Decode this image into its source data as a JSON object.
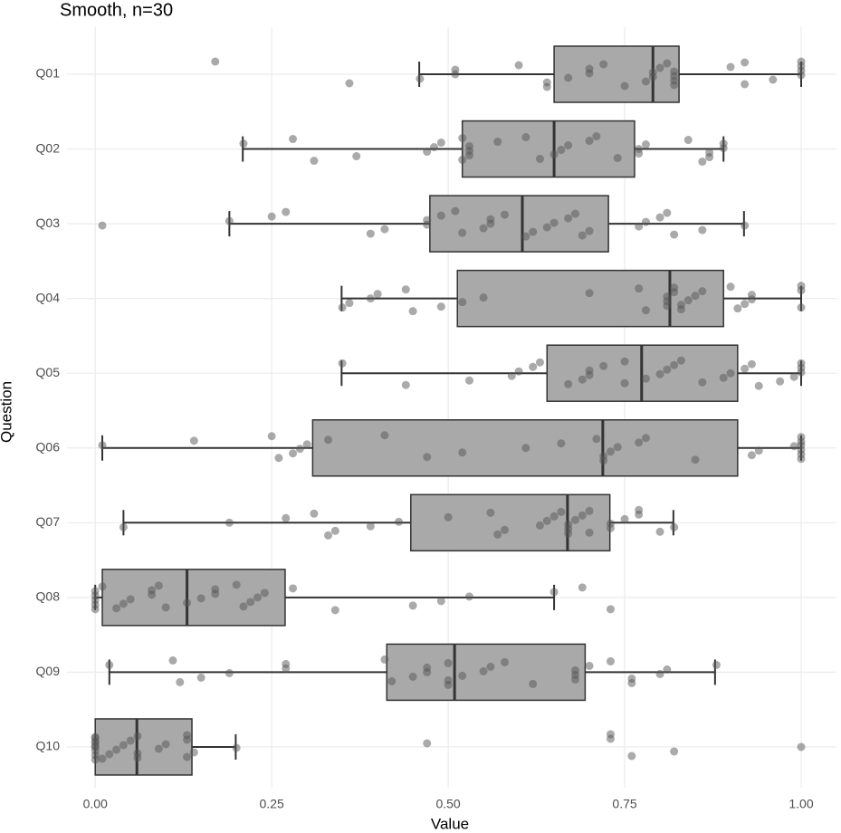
{
  "chart_data": {
    "type": "boxplot",
    "title": "Smooth, n=30",
    "x_label": "Value",
    "y_label": "Question",
    "categories": [
      "Q01",
      "Q02",
      "Q03",
      "Q04",
      "Q05",
      "Q06",
      "Q07",
      "Q08",
      "Q09",
      "Q10"
    ],
    "whisker_low": [
      0.459,
      0.209,
      0.19,
      0.349,
      0.349,
      0.01,
      0.04,
      0.0,
      0.02,
      0.0
    ],
    "q1": [
      0.65,
      0.52,
      0.474,
      0.513,
      0.64,
      0.308,
      0.447,
      0.01,
      0.413,
      0.0
    ],
    "median": [
      0.79,
      0.65,
      0.605,
      0.814,
      0.774,
      0.719,
      0.669,
      0.13,
      0.509,
      0.059
    ],
    "q3": [
      0.827,
      0.764,
      0.727,
      0.89,
      0.91,
      0.91,
      0.729,
      0.269,
      0.694,
      0.137
    ],
    "whisker_high": [
      1.0,
      0.89,
      0.919,
      1.0,
      1.0,
      1.0,
      0.819,
      0.65,
      0.878,
      0.199
    ],
    "points": [
      [
        0.17,
        0.36,
        0.46,
        0.51,
        0.51,
        0.6,
        0.64,
        0.64,
        0.67,
        0.7,
        0.7,
        0.72,
        0.75,
        0.78,
        0.79,
        0.79,
        0.8,
        0.81,
        0.82,
        0.82,
        0.82,
        0.82,
        0.9,
        0.92,
        0.92,
        0.96,
        1.0,
        1.0,
        1.0,
        1.0
      ],
      [
        0.21,
        0.28,
        0.31,
        0.37,
        0.47,
        0.48,
        0.49,
        0.52,
        0.52,
        0.53,
        0.53,
        0.53,
        0.57,
        0.61,
        0.63,
        0.65,
        0.66,
        0.67,
        0.7,
        0.71,
        0.74,
        0.77,
        0.77,
        0.78,
        0.84,
        0.86,
        0.87,
        0.87,
        0.89,
        0.89
      ],
      [
        0.01,
        0.19,
        0.25,
        0.27,
        0.39,
        0.41,
        0.47,
        0.47,
        0.49,
        0.51,
        0.52,
        0.55,
        0.56,
        0.56,
        0.58,
        0.61,
        0.62,
        0.64,
        0.65,
        0.67,
        0.68,
        0.69,
        0.7,
        0.77,
        0.78,
        0.8,
        0.81,
        0.82,
        0.86,
        0.92
      ],
      [
        0.35,
        0.36,
        0.39,
        0.4,
        0.44,
        0.45,
        0.49,
        0.52,
        0.55,
        0.7,
        0.77,
        0.78,
        0.81,
        0.81,
        0.81,
        0.82,
        0.82,
        0.83,
        0.83,
        0.84,
        0.85,
        0.86,
        0.9,
        0.91,
        0.92,
        0.93,
        0.93,
        1.0,
        1.0,
        1.0
      ],
      [
        0.35,
        0.44,
        0.53,
        0.59,
        0.6,
        0.62,
        0.63,
        0.67,
        0.69,
        0.7,
        0.7,
        0.72,
        0.75,
        0.75,
        0.78,
        0.8,
        0.81,
        0.82,
        0.83,
        0.86,
        0.89,
        0.9,
        0.92,
        0.93,
        0.94,
        0.97,
        0.99,
        1.0,
        1.0,
        1.0
      ],
      [
        0.01,
        0.14,
        0.25,
        0.26,
        0.28,
        0.29,
        0.3,
        0.33,
        0.41,
        0.47,
        0.52,
        0.61,
        0.66,
        0.71,
        0.72,
        0.72,
        0.73,
        0.74,
        0.77,
        0.78,
        0.85,
        0.93,
        0.94,
        0.99,
        1.0,
        1.0,
        1.0,
        1.0,
        1.0,
        1.0
      ],
      [
        0.04,
        0.19,
        0.27,
        0.31,
        0.33,
        0.34,
        0.39,
        0.43,
        0.5,
        0.56,
        0.57,
        0.58,
        0.63,
        0.64,
        0.65,
        0.66,
        0.67,
        0.67,
        0.67,
        0.68,
        0.69,
        0.7,
        0.7,
        0.73,
        0.73,
        0.75,
        0.77,
        0.77,
        0.8,
        0.82
      ],
      [
        0.0,
        0.0,
        0.0,
        0.0,
        0.0,
        0.01,
        0.03,
        0.04,
        0.05,
        0.08,
        0.08,
        0.09,
        0.1,
        0.13,
        0.15,
        0.17,
        0.17,
        0.2,
        0.21,
        0.22,
        0.23,
        0.24,
        0.28,
        0.34,
        0.45,
        0.49,
        0.53,
        0.65,
        0.69,
        0.73
      ],
      [
        0.02,
        0.11,
        0.12,
        0.15,
        0.19,
        0.27,
        0.27,
        0.41,
        0.42,
        0.45,
        0.47,
        0.47,
        0.5,
        0.5,
        0.5,
        0.52,
        0.55,
        0.56,
        0.58,
        0.62,
        0.68,
        0.68,
        0.68,
        0.7,
        0.73,
        0.76,
        0.76,
        0.8,
        0.81,
        0.88
      ],
      [
        0.0,
        0.0,
        0.0,
        0.0,
        0.0,
        0.0,
        0.0,
        0.0,
        0.0,
        0.01,
        0.02,
        0.03,
        0.04,
        0.05,
        0.06,
        0.06,
        0.06,
        0.09,
        0.1,
        0.13,
        0.13,
        0.13,
        0.14,
        0.2,
        0.47,
        0.73,
        0.73,
        0.76,
        0.82,
        1.0
      ]
    ],
    "box_color": "#a9a9a9",
    "point_color": "#555555",
    "xlim": [
      -0.04,
      1.05
    ],
    "xticks": [
      {
        "value": 0,
        "label": "0.00"
      },
      0.25,
      {
        "value": 0.5,
        "label": "0.50"
      },
      0.75,
      {
        "value": 1,
        "label": "1.00"
      }
    ],
    "grid": true
  }
}
